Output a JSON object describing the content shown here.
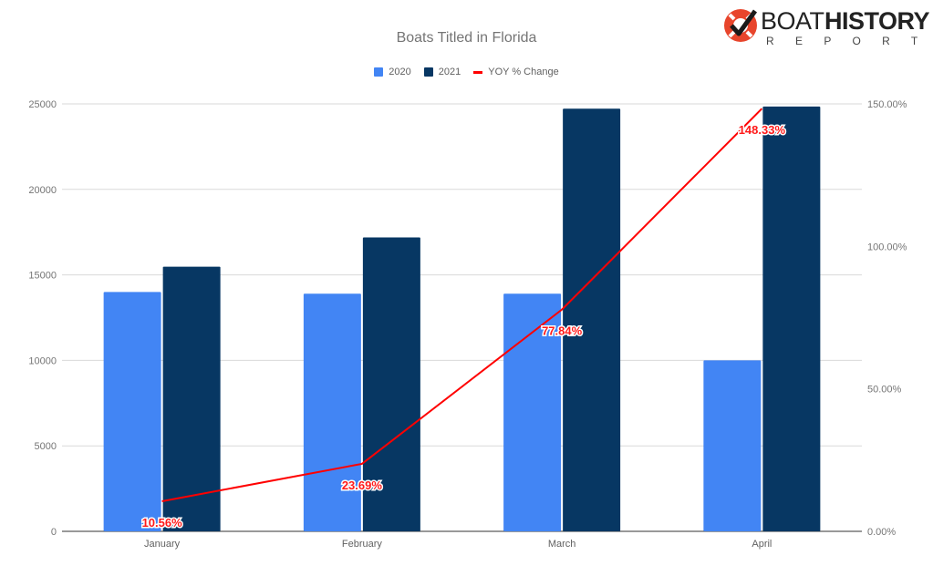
{
  "brand": {
    "logo_text_light": "BOAT",
    "logo_text_bold": "HISTORY",
    "logo_subtext": "R E P O R T",
    "logo_icon": "lifebuoy-check-icon"
  },
  "chart_data": {
    "type": "bar",
    "title": "Boats Titled in Florida",
    "categories": [
      "January",
      "February",
      "March",
      "April"
    ],
    "series": [
      {
        "name": "2020",
        "type": "bar",
        "axis": "left",
        "color": "#4285f4",
        "values": [
          14000,
          13900,
          13900,
          10000
        ]
      },
      {
        "name": "2021",
        "type": "bar",
        "axis": "left",
        "color": "#073763",
        "values": [
          15480,
          17190,
          24720,
          24850
        ]
      },
      {
        "name": "YOY % Change",
        "type": "line",
        "axis": "right",
        "color": "#ff0000",
        "values": [
          10.56,
          23.69,
          77.84,
          148.33
        ],
        "labels": [
          "10.56%",
          "23.69%",
          "77.84%",
          "148.33%"
        ]
      }
    ],
    "left_axis": {
      "ylim": [
        0,
        25000
      ],
      "ticks": [
        "0",
        "5000",
        "10000",
        "15000",
        "20000",
        "25000"
      ]
    },
    "right_axis": {
      "ylim": [
        0,
        150
      ],
      "ticks": [
        "0.00%",
        "50.00%",
        "100.00%",
        "150.00%"
      ]
    },
    "xlabel": "",
    "ylabel": "",
    "legend_position": "top",
    "grid": true
  }
}
